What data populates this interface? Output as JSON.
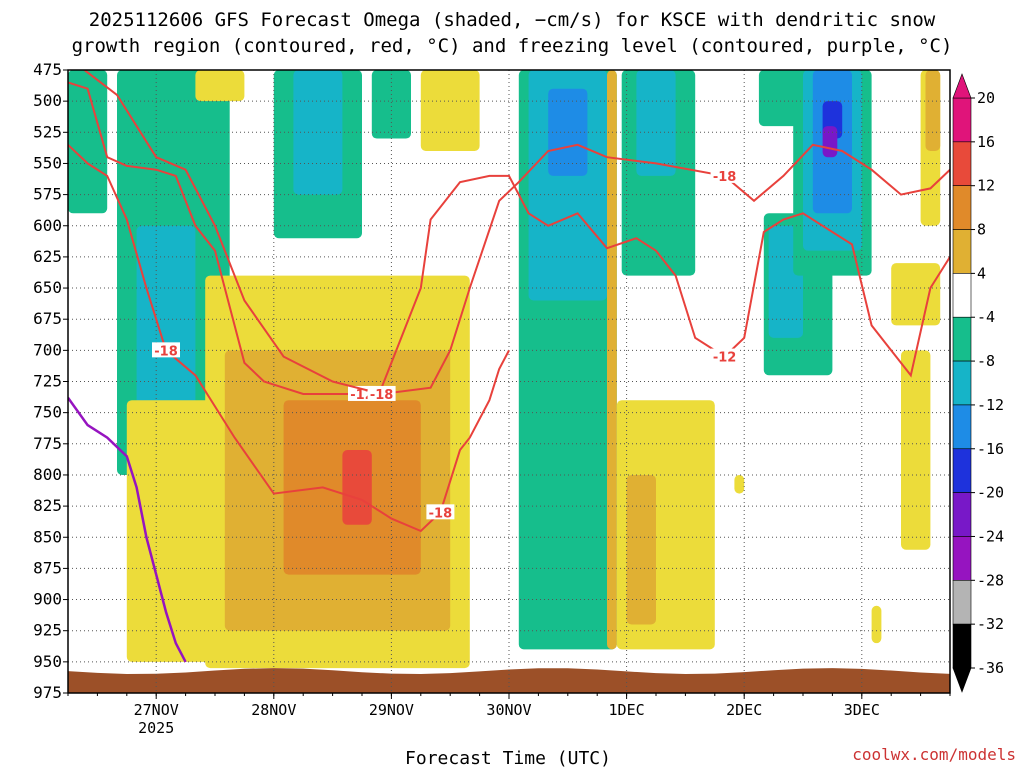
{
  "title": {
    "line1": "2025112606 GFS Forecast Omega (shaded, −cm/s) for KSCE with dendritic snow",
    "line2": "growth region (contoured, red, °C) and freezing level (contoured, purple, °C)"
  },
  "credit": "coolwx.com/models",
  "colors": {
    "positive": [
      "#ffffff",
      "#ecdc3a",
      "#e0b033",
      "#e08a2a",
      "#e84a3a",
      "#e0147a"
    ],
    "negative": [
      "#ffffff",
      "#1ec81e",
      "#16be8c",
      "#16b4c8",
      "#1e8ce6",
      "#1e32dc",
      "#7818c8",
      "#9614c0",
      "#b4b4b4",
      "#000000"
    ],
    "snow_contour": "#e8413c",
    "freezing_contour": "#9614c0",
    "terrain": "#9c5028"
  },
  "chart_data": {
    "type": "heatmap",
    "xlabel": "Forecast Time (UTC)",
    "ylabel": "",
    "y_unit": "hPa",
    "y_ticks": [
      475,
      500,
      525,
      550,
      575,
      600,
      625,
      650,
      675,
      700,
      725,
      750,
      775,
      800,
      825,
      850,
      875,
      900,
      925,
      950,
      975
    ],
    "ylim": [
      975,
      475
    ],
    "x_ticks": [
      {
        "label": "27NOV",
        "sub": "2025",
        "hour": 18
      },
      {
        "label": "28NOV",
        "sub": "",
        "hour": 42
      },
      {
        "label": "29NOV",
        "sub": "",
        "hour": 66
      },
      {
        "label": "30NOV",
        "sub": "",
        "hour": 90
      },
      {
        "label": "1DEC",
        "sub": "",
        "hour": 114
      },
      {
        "label": "2DEC",
        "sub": "",
        "hour": 138
      },
      {
        "label": "3DEC",
        "sub": "",
        "hour": 162
      }
    ],
    "xlim_hours": [
      0,
      180
    ],
    "colorbar": {
      "levels": [
        20,
        16,
        12,
        8,
        4,
        -4,
        -8,
        -12,
        -16,
        -20,
        -24,
        -28,
        -32,
        -36
      ],
      "unit": "-cm/s"
    },
    "omega_regions": [
      {
        "level": -8,
        "x0": 0,
        "x1": 8,
        "y0": 475,
        "y1": 590
      },
      {
        "level": -8,
        "x0": 10,
        "x1": 30,
        "y0": 475,
        "y1": 800
      },
      {
        "level": -12,
        "x0": 14,
        "x1": 26,
        "y0": 600,
        "y1": 800
      },
      {
        "level": -8,
        "x0": 27,
        "x1": 33,
        "y0": 475,
        "y1": 700
      },
      {
        "level": -8,
        "x0": 42,
        "x1": 60,
        "y0": 475,
        "y1": 610
      },
      {
        "level": -12,
        "x0": 46,
        "x1": 56,
        "y0": 475,
        "y1": 575
      },
      {
        "level": -8,
        "x0": 62,
        "x1": 70,
        "y0": 475,
        "y1": 530
      },
      {
        "level": 4,
        "x0": 26,
        "x1": 36,
        "y0": 475,
        "y1": 500
      },
      {
        "level": 4,
        "x0": 72,
        "x1": 84,
        "y0": 475,
        "y1": 540
      },
      {
        "level": -8,
        "x0": 92,
        "x1": 112,
        "y0": 475,
        "y1": 940
      },
      {
        "level": -12,
        "x0": 94,
        "x1": 110,
        "y0": 475,
        "y1": 660
      },
      {
        "level": -16,
        "x0": 98,
        "x1": 106,
        "y0": 490,
        "y1": 560
      },
      {
        "level": 8,
        "x0": 110,
        "x1": 112,
        "y0": 475,
        "y1": 940
      },
      {
        "level": -8,
        "x0": 113,
        "x1": 128,
        "y0": 475,
        "y1": 640
      },
      {
        "level": -12,
        "x0": 116,
        "x1": 124,
        "y0": 475,
        "y1": 560
      },
      {
        "level": -8,
        "x0": 141,
        "x1": 150,
        "y0": 475,
        "y1": 520
      },
      {
        "level": -8,
        "x0": 142,
        "x1": 156,
        "y0": 590,
        "y1": 720
      },
      {
        "level": -12,
        "x0": 143,
        "x1": 150,
        "y0": 600,
        "y1": 690
      },
      {
        "level": -8,
        "x0": 148,
        "x1": 164,
        "y0": 475,
        "y1": 640
      },
      {
        "level": -12,
        "x0": 150,
        "x1": 162,
        "y0": 475,
        "y1": 620
      },
      {
        "level": -16,
        "x0": 152,
        "x1": 160,
        "y0": 475,
        "y1": 590
      },
      {
        "level": -20,
        "x0": 154,
        "x1": 158,
        "y0": 500,
        "y1": 530
      },
      {
        "level": -24,
        "x0": 154,
        "x1": 157,
        "y0": 520,
        "y1": 545
      },
      {
        "level": 4,
        "x0": 12,
        "x1": 30,
        "y0": 740,
        "y1": 950
      },
      {
        "level": 4,
        "x0": 28,
        "x1": 82,
        "y0": 640,
        "y1": 955
      },
      {
        "level": 8,
        "x0": 32,
        "x1": 78,
        "y0": 700,
        "y1": 925
      },
      {
        "level": 12,
        "x0": 44,
        "x1": 72,
        "y0": 740,
        "y1": 880
      },
      {
        "level": 16,
        "x0": 56,
        "x1": 62,
        "y0": 780,
        "y1": 840
      },
      {
        "level": 4,
        "x0": 112,
        "x1": 132,
        "y0": 740,
        "y1": 940
      },
      {
        "level": 8,
        "x0": 114,
        "x1": 120,
        "y0": 800,
        "y1": 920
      },
      {
        "level": 4,
        "x0": 168,
        "x1": 178,
        "y0": 630,
        "y1": 680
      },
      {
        "level": 4,
        "x0": 170,
        "x1": 176,
        "y0": 700,
        "y1": 860
      },
      {
        "level": 4,
        "x0": 174,
        "x1": 178,
        "y0": 475,
        "y1": 600
      },
      {
        "level": 8,
        "x0": 175,
        "x1": 178,
        "y0": 475,
        "y1": 540
      },
      {
        "level": 4,
        "x0": 164,
        "x1": 166,
        "y0": 905,
        "y1": 935
      },
      {
        "level": 4,
        "x0": 136,
        "x1": 138,
        "y0": 800,
        "y1": 815
      }
    ],
    "snow_contours": [
      {
        "label": "-12",
        "points": [
          [
            0,
            485
          ],
          [
            4,
            490
          ],
          [
            8,
            545
          ],
          [
            12,
            552
          ],
          [
            18,
            555
          ],
          [
            22,
            560
          ],
          [
            26,
            600
          ],
          [
            30,
            620
          ],
          [
            36,
            710
          ],
          [
            40,
            725
          ],
          [
            48,
            735
          ],
          [
            60,
            735
          ],
          [
            64,
            730
          ],
          [
            68,
            690
          ],
          [
            72,
            650
          ],
          [
            74,
            595
          ],
          [
            80,
            565
          ],
          [
            86,
            560
          ],
          [
            90,
            560
          ],
          [
            94,
            590
          ],
          [
            98,
            600
          ],
          [
            104,
            590
          ],
          [
            110,
            618
          ],
          [
            116,
            610
          ],
          [
            120,
            620
          ],
          [
            124,
            640
          ],
          [
            128,
            690
          ],
          [
            134,
            705
          ],
          [
            138,
            690
          ],
          [
            142,
            605
          ],
          [
            146,
            595
          ],
          [
            150,
            590
          ],
          [
            154,
            600
          ],
          [
            160,
            615
          ],
          [
            164,
            680
          ],
          [
            168,
            700
          ],
          [
            172,
            720
          ],
          [
            176,
            650
          ],
          [
            180,
            625
          ]
        ]
      },
      {
        "label": "-18",
        "points": [
          [
            0,
            535
          ],
          [
            4,
            550
          ],
          [
            8,
            560
          ],
          [
            12,
            595
          ],
          [
            16,
            650
          ],
          [
            20,
            700
          ],
          [
            26,
            720
          ],
          [
            34,
            770
          ],
          [
            42,
            815
          ],
          [
            52,
            810
          ],
          [
            60,
            820
          ],
          [
            66,
            835
          ],
          [
            72,
            845
          ],
          [
            76,
            830
          ],
          [
            80,
            780
          ],
          [
            82,
            770
          ],
          [
            86,
            740
          ],
          [
            88,
            715
          ],
          [
            90,
            700
          ]
        ]
      },
      {
        "label": "-18",
        "points": [
          [
            0,
            465
          ],
          [
            10,
            495
          ],
          [
            18,
            545
          ],
          [
            24,
            555
          ],
          [
            30,
            600
          ],
          [
            36,
            660
          ],
          [
            44,
            705
          ],
          [
            54,
            725
          ],
          [
            64,
            735
          ],
          [
            74,
            730
          ],
          [
            78,
            700
          ],
          [
            82,
            650
          ],
          [
            88,
            580
          ],
          [
            92,
            565
          ],
          [
            98,
            540
          ],
          [
            104,
            535
          ],
          [
            110,
            545
          ],
          [
            120,
            550
          ],
          [
            134,
            560
          ],
          [
            140,
            580
          ],
          [
            146,
            560
          ],
          [
            152,
            535
          ],
          [
            158,
            540
          ],
          [
            164,
            555
          ],
          [
            170,
            575
          ],
          [
            176,
            570
          ],
          [
            180,
            555
          ]
        ]
      }
    ],
    "freezing_contour": [
      [
        0,
        738
      ],
      [
        4,
        760
      ],
      [
        8,
        770
      ],
      [
        12,
        785
      ],
      [
        14,
        810
      ],
      [
        16,
        850
      ],
      [
        18,
        880
      ],
      [
        20,
        910
      ],
      [
        22,
        935
      ],
      [
        24,
        950
      ]
    ],
    "terrain_top": 955
  }
}
